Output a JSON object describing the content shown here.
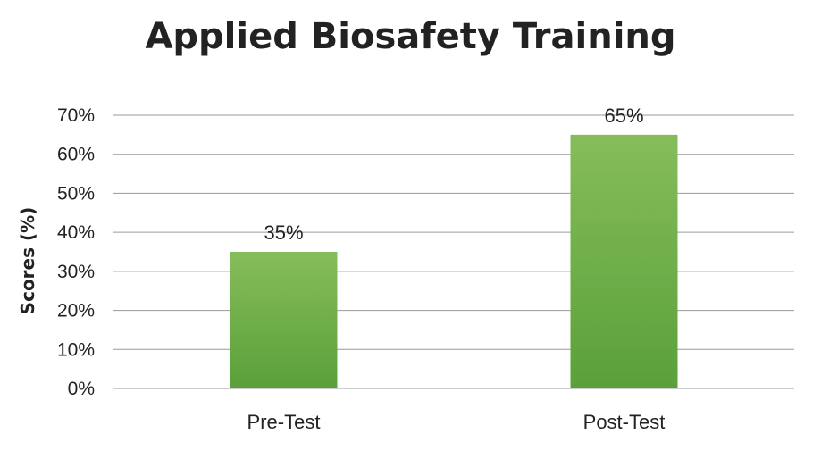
{
  "chart_data": {
    "type": "bar",
    "title": "Applied Biosafety Training",
    "xlabel": "",
    "ylabel": "Scores (%)",
    "categories": [
      "Pre-Test",
      "Post-Test"
    ],
    "values": [
      35,
      65
    ],
    "data_labels": [
      "35%",
      "65%"
    ],
    "ylim": [
      0,
      70
    ],
    "yticks": [
      0,
      10,
      20,
      30,
      40,
      50,
      60,
      70
    ],
    "ytick_labels": [
      "0%",
      "10%",
      "20%",
      "30%",
      "40%",
      "50%",
      "60%",
      "70%"
    ],
    "grid": true,
    "legend": "none",
    "bar_color_top": "#86bd5b",
    "bar_color_bottom": "#5aa03a"
  }
}
